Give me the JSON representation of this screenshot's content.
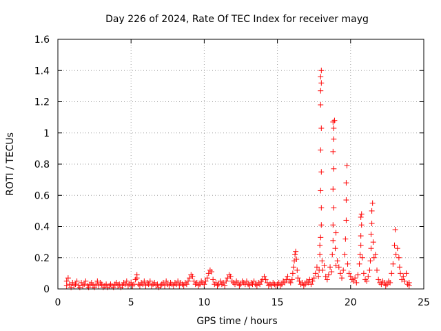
{
  "chart_data": {
    "type": "scatter",
    "title": "Day 226 of 2024, Rate Of TEC Index for receiver mayg",
    "xlabel": "GPS time / hours",
    "ylabel": "ROTI / TECUs",
    "xlim": [
      0,
      25
    ],
    "ylim": [
      0,
      1.6
    ],
    "xticks": [
      0,
      5,
      10,
      15,
      20,
      25
    ],
    "xtick_labels": [
      "0",
      "5",
      "10",
      "15",
      "20",
      "25"
    ],
    "yticks": [
      0,
      0.2,
      0.4,
      0.6,
      0.8,
      1.0,
      1.2,
      1.4,
      1.6
    ],
    "ytick_labels": [
      "0",
      "0.2",
      "0.4",
      "0.6",
      "0.8",
      "1",
      "1.2",
      "1.4",
      "1.6"
    ],
    "grid": true,
    "marker": "plus",
    "colors": {
      "series": "#ff0000",
      "grid": "#a0a0a0",
      "axes": "#000000"
    },
    "series": [
      {
        "name": "ROTI",
        "points": [
          [
            0.6,
            0.02
          ],
          [
            0.6,
            0.05
          ],
          [
            0.7,
            0.07
          ],
          [
            0.8,
            0.03
          ],
          [
            0.9,
            0.01
          ],
          [
            1.0,
            0.04
          ],
          [
            1.1,
            0.02
          ],
          [
            1.2,
            0.03
          ],
          [
            1.3,
            0.05
          ],
          [
            1.4,
            0.02
          ],
          [
            1.5,
            0.01
          ],
          [
            1.6,
            0.04
          ],
          [
            1.7,
            0.02
          ],
          [
            1.8,
            0.03
          ],
          [
            1.9,
            0.05
          ],
          [
            2.0,
            0.02
          ],
          [
            2.1,
            0.01
          ],
          [
            2.2,
            0.03
          ],
          [
            2.3,
            0.04
          ],
          [
            2.4,
            0.02
          ],
          [
            2.5,
            0.01
          ],
          [
            2.6,
            0.03
          ],
          [
            2.7,
            0.05
          ],
          [
            2.8,
            0.02
          ],
          [
            2.9,
            0.04
          ],
          [
            3.0,
            0.03
          ],
          [
            3.1,
            0.01
          ],
          [
            3.2,
            0.02
          ],
          [
            3.3,
            0.03
          ],
          [
            3.4,
            0.01
          ],
          [
            3.5,
            0.02
          ],
          [
            3.6,
            0.03
          ],
          [
            3.7,
            0.02
          ],
          [
            3.8,
            0.01
          ],
          [
            3.9,
            0.03
          ],
          [
            4.0,
            0.04
          ],
          [
            4.1,
            0.02
          ],
          [
            4.2,
            0.03
          ],
          [
            4.3,
            0.01
          ],
          [
            4.4,
            0.02
          ],
          [
            4.5,
            0.04
          ],
          [
            4.6,
            0.03
          ],
          [
            4.7,
            0.05
          ],
          [
            4.8,
            0.02
          ],
          [
            4.9,
            0.03
          ],
          [
            5.0,
            0.04
          ],
          [
            5.1,
            0.02
          ],
          [
            5.2,
            0.03
          ],
          [
            5.3,
            0.06
          ],
          [
            5.4,
            0.09
          ],
          [
            5.4,
            0.07
          ],
          [
            5.5,
            0.03
          ],
          [
            5.6,
            0.02
          ],
          [
            5.7,
            0.04
          ],
          [
            5.8,
            0.03
          ],
          [
            5.9,
            0.05
          ],
          [
            6.0,
            0.02
          ],
          [
            6.1,
            0.04
          ],
          [
            6.2,
            0.03
          ],
          [
            6.3,
            0.05
          ],
          [
            6.4,
            0.02
          ],
          [
            6.5,
            0.03
          ],
          [
            6.6,
            0.04
          ],
          [
            6.7,
            0.02
          ],
          [
            6.8,
            0.03
          ],
          [
            6.9,
            0.01
          ],
          [
            7.0,
            0.02
          ],
          [
            7.1,
            0.03
          ],
          [
            7.2,
            0.04
          ],
          [
            7.3,
            0.02
          ],
          [
            7.4,
            0.05
          ],
          [
            7.5,
            0.03
          ],
          [
            7.6,
            0.02
          ],
          [
            7.7,
            0.04
          ],
          [
            7.8,
            0.03
          ],
          [
            7.9,
            0.02
          ],
          [
            8.0,
            0.04
          ],
          [
            8.1,
            0.03
          ],
          [
            8.2,
            0.05
          ],
          [
            8.3,
            0.02
          ],
          [
            8.4,
            0.04
          ],
          [
            8.5,
            0.03
          ],
          [
            8.6,
            0.02
          ],
          [
            8.7,
            0.04
          ],
          [
            8.8,
            0.03
          ],
          [
            8.9,
            0.05
          ],
          [
            9.0,
            0.07
          ],
          [
            9.1,
            0.09
          ],
          [
            9.2,
            0.08
          ],
          [
            9.3,
            0.05
          ],
          [
            9.4,
            0.03
          ],
          [
            9.5,
            0.04
          ],
          [
            9.6,
            0.02
          ],
          [
            9.7,
            0.03
          ],
          [
            9.8,
            0.05
          ],
          [
            9.9,
            0.04
          ],
          [
            10.0,
            0.03
          ],
          [
            10.1,
            0.05
          ],
          [
            10.2,
            0.07
          ],
          [
            10.3,
            0.1
          ],
          [
            10.4,
            0.12
          ],
          [
            10.5,
            0.11
          ],
          [
            10.6,
            0.06
          ],
          [
            10.7,
            0.03
          ],
          [
            10.8,
            0.04
          ],
          [
            10.9,
            0.02
          ],
          [
            11.0,
            0.03
          ],
          [
            11.1,
            0.05
          ],
          [
            11.2,
            0.03
          ],
          [
            11.3,
            0.04
          ],
          [
            11.4,
            0.02
          ],
          [
            11.5,
            0.05
          ],
          [
            11.6,
            0.07
          ],
          [
            11.7,
            0.09
          ],
          [
            11.8,
            0.08
          ],
          [
            11.9,
            0.05
          ],
          [
            12.0,
            0.04
          ],
          [
            12.1,
            0.03
          ],
          [
            12.2,
            0.05
          ],
          [
            12.3,
            0.04
          ],
          [
            12.4,
            0.02
          ],
          [
            12.5,
            0.03
          ],
          [
            12.6,
            0.05
          ],
          [
            12.7,
            0.04
          ],
          [
            12.8,
            0.03
          ],
          [
            12.9,
            0.05
          ],
          [
            13.0,
            0.03
          ],
          [
            13.1,
            0.02
          ],
          [
            13.2,
            0.04
          ],
          [
            13.3,
            0.03
          ],
          [
            13.4,
            0.05
          ],
          [
            13.5,
            0.03
          ],
          [
            13.6,
            0.02
          ],
          [
            13.7,
            0.04
          ],
          [
            13.8,
            0.03
          ],
          [
            13.9,
            0.05
          ],
          [
            14.0,
            0.06
          ],
          [
            14.1,
            0.08
          ],
          [
            14.2,
            0.06
          ],
          [
            14.3,
            0.04
          ],
          [
            14.4,
            0.02
          ],
          [
            14.5,
            0.03
          ],
          [
            14.6,
            0.02
          ],
          [
            14.7,
            0.04
          ],
          [
            14.8,
            0.03
          ],
          [
            14.9,
            0.02
          ],
          [
            15.0,
            0.03
          ],
          [
            15.1,
            0.04
          ],
          [
            15.2,
            0.02
          ],
          [
            15.3,
            0.03
          ],
          [
            15.4,
            0.05
          ],
          [
            15.5,
            0.04
          ],
          [
            15.6,
            0.06
          ],
          [
            15.7,
            0.08
          ],
          [
            15.8,
            0.05
          ],
          [
            15.9,
            0.04
          ],
          [
            16.0,
            0.06
          ],
          [
            16.05,
            0.1
          ],
          [
            16.1,
            0.14
          ],
          [
            16.15,
            0.18
          ],
          [
            16.2,
            0.22
          ],
          [
            16.25,
            0.24
          ],
          [
            16.3,
            0.19
          ],
          [
            16.35,
            0.12
          ],
          [
            16.4,
            0.07
          ],
          [
            16.5,
            0.05
          ],
          [
            16.6,
            0.03
          ],
          [
            16.7,
            0.04
          ],
          [
            16.8,
            0.02
          ],
          [
            16.9,
            0.03
          ],
          [
            17.0,
            0.05
          ],
          [
            17.1,
            0.04
          ],
          [
            17.2,
            0.06
          ],
          [
            17.3,
            0.03
          ],
          [
            17.4,
            0.05
          ],
          [
            17.5,
            0.07
          ],
          [
            17.6,
            0.1
          ],
          [
            17.7,
            0.14
          ],
          [
            17.8,
            0.08
          ],
          [
            17.85,
            0.12
          ],
          [
            17.9,
            0.22
          ],
          [
            17.9,
            0.28
          ],
          [
            17.95,
            0.33
          ],
          [
            18.0,
            0.41
          ],
          [
            18.0,
            0.52
          ],
          [
            17.95,
            0.63
          ],
          [
            18.0,
            0.75
          ],
          [
            17.95,
            0.89
          ],
          [
            18.0,
            1.03
          ],
          [
            17.95,
            1.18
          ],
          [
            17.95,
            1.27
          ],
          [
            18.0,
            1.32
          ],
          [
            17.95,
            1.36
          ],
          [
            18.0,
            1.4
          ],
          [
            18.05,
            0.18
          ],
          [
            18.1,
            0.12
          ],
          [
            18.2,
            0.15
          ],
          [
            18.3,
            0.08
          ],
          [
            18.4,
            0.06
          ],
          [
            18.5,
            0.09
          ],
          [
            18.6,
            0.14
          ],
          [
            18.7,
            0.11
          ],
          [
            18.75,
            0.22
          ],
          [
            18.8,
            0.31
          ],
          [
            18.8,
            0.41
          ],
          [
            18.85,
            0.52
          ],
          [
            18.8,
            0.64
          ],
          [
            18.85,
            0.77
          ],
          [
            18.8,
            0.88
          ],
          [
            18.85,
            0.96
          ],
          [
            18.85,
            1.03
          ],
          [
            18.8,
            1.07
          ],
          [
            18.9,
            1.08
          ],
          [
            18.95,
            0.26
          ],
          [
            19.0,
            0.36
          ],
          [
            19.0,
            0.15
          ],
          [
            19.1,
            0.18
          ],
          [
            19.2,
            0.14
          ],
          [
            19.3,
            0.1
          ],
          [
            19.4,
            0.07
          ],
          [
            19.5,
            0.12
          ],
          [
            19.6,
            0.22
          ],
          [
            19.65,
            0.32
          ],
          [
            19.7,
            0.44
          ],
          [
            19.7,
            0.57
          ],
          [
            19.7,
            0.68
          ],
          [
            19.75,
            0.79
          ],
          [
            19.8,
            0.16
          ],
          [
            19.9,
            0.1
          ],
          [
            20.0,
            0.08
          ],
          [
            20.1,
            0.06
          ],
          [
            20.2,
            0.05
          ],
          [
            20.3,
            0.07
          ],
          [
            20.4,
            0.04
          ],
          [
            20.5,
            0.09
          ],
          [
            20.6,
            0.16
          ],
          [
            20.65,
            0.22
          ],
          [
            20.7,
            0.28
          ],
          [
            20.7,
            0.34
          ],
          [
            20.75,
            0.41
          ],
          [
            20.7,
            0.46
          ],
          [
            20.75,
            0.48
          ],
          [
            20.8,
            0.2
          ],
          [
            20.9,
            0.1
          ],
          [
            21.0,
            0.06
          ],
          [
            21.1,
            0.05
          ],
          [
            21.2,
            0.08
          ],
          [
            21.3,
            0.12
          ],
          [
            21.35,
            0.18
          ],
          [
            21.4,
            0.26
          ],
          [
            21.4,
            0.35
          ],
          [
            21.45,
            0.42
          ],
          [
            21.45,
            0.5
          ],
          [
            21.5,
            0.55
          ],
          [
            21.55,
            0.3
          ],
          [
            21.6,
            0.2
          ],
          [
            21.7,
            0.22
          ],
          [
            21.8,
            0.12
          ],
          [
            21.9,
            0.06
          ],
          [
            22.0,
            0.04
          ],
          [
            22.1,
            0.03
          ],
          [
            22.2,
            0.05
          ],
          [
            22.3,
            0.04
          ],
          [
            22.4,
            0.02
          ],
          [
            22.5,
            0.03
          ],
          [
            22.6,
            0.05
          ],
          [
            22.7,
            0.04
          ],
          [
            22.8,
            0.1
          ],
          [
            22.9,
            0.16
          ],
          [
            23.0,
            0.28
          ],
          [
            23.05,
            0.38
          ],
          [
            23.1,
            0.22
          ],
          [
            23.2,
            0.26
          ],
          [
            23.3,
            0.2
          ],
          [
            23.35,
            0.14
          ],
          [
            23.4,
            0.1
          ],
          [
            23.5,
            0.06
          ],
          [
            23.6,
            0.08
          ],
          [
            23.7,
            0.05
          ],
          [
            23.8,
            0.1
          ],
          [
            23.9,
            0.03
          ],
          [
            24.0,
            0.02
          ],
          [
            24.0,
            0.04
          ]
        ]
      }
    ]
  }
}
